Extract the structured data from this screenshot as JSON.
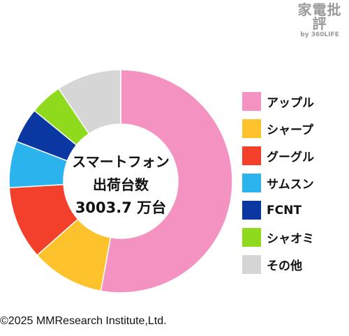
{
  "logo": {
    "main": "家電批評",
    "sub": "by 360LIFE"
  },
  "center": {
    "line1": "スマートフォン",
    "line2": "出荷台数",
    "line3": "3003.7 万台"
  },
  "copyright": "©2025 MMResearch Institute,Ltd.",
  "chart_data": {
    "type": "pie",
    "title": "",
    "labels": [
      "アップル",
      "シャープ",
      "グーグル",
      "サムスン",
      "FCNT",
      "シャオミ",
      "その他"
    ],
    "values": [
      51.8,
      10.4,
      10.4,
      6.6,
      5.0,
      4.6,
      9.2
    ],
    "colors": [
      "#F493C1",
      "#FDC22C",
      "#F2402A",
      "#2BB3EE",
      "#0B37A3",
      "#8FDA1C",
      "#D6D6D6"
    ],
    "legend_position": "right"
  }
}
